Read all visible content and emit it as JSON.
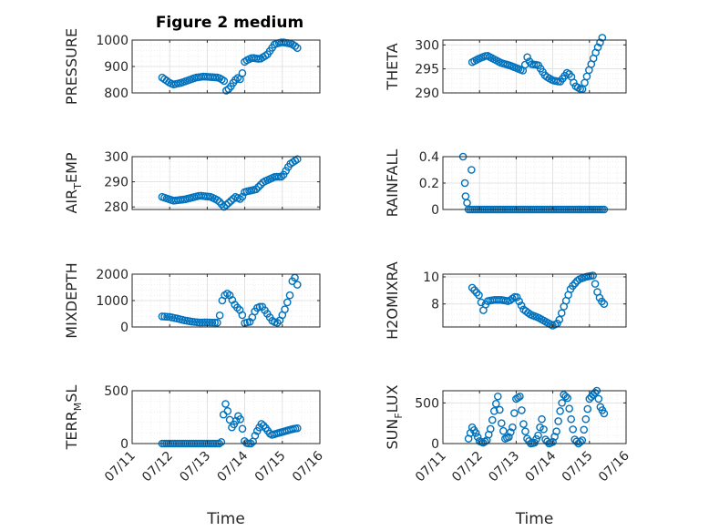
{
  "figure": {
    "title": "Figure 2 medium"
  },
  "colors": {
    "marker": "#0072BD",
    "axes": "#262626",
    "grid": "#dcdcdc",
    "minorGrid": "#e6e6e6"
  },
  "chart_data": [
    {
      "type": "scatter",
      "ylabel": "PRESSURE",
      "title": "Figure 2 medium",
      "xlim": [
        "07/11",
        "07/16"
      ],
      "ylim": [
        800,
        1000
      ],
      "yticks": [
        "800",
        "900",
        "1000"
      ],
      "xtick_labels": [
        "07/11",
        "07/12",
        "07/13",
        "07/14",
        "07/15",
        "07/16"
      ],
      "show_xticklabels": false,
      "anchors": [
        [
          0.8,
          858
        ],
        [
          0.9,
          848
        ],
        [
          1.0,
          838
        ],
        [
          1.1,
          832
        ],
        [
          1.3,
          838
        ],
        [
          1.5,
          848
        ],
        [
          1.7,
          858
        ],
        [
          1.9,
          862
        ],
        [
          2.1,
          860
        ],
        [
          2.3,
          858
        ],
        [
          2.4,
          850
        ],
        [
          2.45,
          845
        ],
        [
          2.5,
          808
        ],
        [
          2.6,
          818
        ],
        [
          2.7,
          840
        ],
        [
          2.8,
          858
        ],
        [
          2.9,
          850
        ],
        [
          3.0,
          920
        ],
        [
          3.2,
          933
        ],
        [
          3.4,
          928
        ],
        [
          3.6,
          945
        ],
        [
          3.8,
          985
        ],
        [
          4.0,
          992
        ],
        [
          4.2,
          987
        ],
        [
          4.3,
          982
        ],
        [
          4.4,
          970
        ]
      ],
      "points": 60,
      "grid": true
    },
    {
      "type": "scatter",
      "ylabel": "THETA",
      "xlim": [
        "07/11",
        "07/16"
      ],
      "ylim": [
        290,
        301
      ],
      "yticks": [
        "290",
        "295",
        "300"
      ],
      "xtick_labels": [
        "07/11",
        "07/12",
        "07/13",
        "07/14",
        "07/15",
        "07/16"
      ],
      "show_xticklabels": false,
      "anchors": [
        [
          0.8,
          296.4
        ],
        [
          1.0,
          297.2
        ],
        [
          1.2,
          297.8
        ],
        [
          1.4,
          297.0
        ],
        [
          1.6,
          296.2
        ],
        [
          1.8,
          295.8
        ],
        [
          2.0,
          295.2
        ],
        [
          2.2,
          294.6
        ],
        [
          2.3,
          297.5
        ],
        [
          2.4,
          296.0
        ],
        [
          2.6,
          295.8
        ],
        [
          2.8,
          293.5
        ],
        [
          3.0,
          292.6
        ],
        [
          3.2,
          292.3
        ],
        [
          3.4,
          294.3
        ],
        [
          3.5,
          293.5
        ],
        [
          3.6,
          291.5
        ],
        [
          3.8,
          290.6
        ],
        [
          4.0,
          295.0
        ],
        [
          4.2,
          299.0
        ],
        [
          4.35,
          301.5
        ]
      ],
      "points": 60,
      "grid": true
    },
    {
      "type": "scatter",
      "ylabel": "AIR_TEMP",
      "xlim": [
        "07/11",
        "07/16"
      ],
      "ylim": [
        279,
        300
      ],
      "yticks": [
        "280",
        "290",
        "300"
      ],
      "xtick_labels": [
        "07/11",
        "07/12",
        "07/13",
        "07/14",
        "07/15",
        "07/16"
      ],
      "show_xticklabels": false,
      "anchors": [
        [
          0.8,
          284
        ],
        [
          1.1,
          282.5
        ],
        [
          1.4,
          283
        ],
        [
          1.8,
          284.5
        ],
        [
          2.1,
          284
        ],
        [
          2.3,
          282.5
        ],
        [
          2.45,
          280
        ],
        [
          2.6,
          282
        ],
        [
          2.75,
          284
        ],
        [
          2.9,
          283
        ],
        [
          3.0,
          286
        ],
        [
          3.3,
          287
        ],
        [
          3.5,
          290
        ],
        [
          3.8,
          292
        ],
        [
          4.0,
          292
        ],
        [
          4.2,
          297
        ],
        [
          4.4,
          299
        ]
      ],
      "points": 60,
      "grid": true
    },
    {
      "type": "scatter",
      "ylabel": "RAINFALL",
      "xlim": [
        "07/11",
        "07/16"
      ],
      "ylim": [
        0,
        0.4
      ],
      "yticks": [
        "0",
        "0.2",
        "0.4"
      ],
      "xtick_labels": [
        "07/11",
        "07/12",
        "07/13",
        "07/14",
        "07/15",
        "07/16"
      ],
      "show_xticklabels": false,
      "extra_points": [
        [
          0.55,
          0.4
        ],
        [
          0.6,
          0.2
        ],
        [
          0.62,
          0.1
        ],
        [
          0.66,
          0.05
        ],
        [
          0.78,
          0.3
        ]
      ],
      "baseline_range": [
        0.7,
        4.4
      ],
      "baseline_value": 0,
      "points": 70,
      "grid": true
    },
    {
      "type": "scatter",
      "ylabel": "MIXDEPTH",
      "xlim": [
        "07/11",
        "07/16"
      ],
      "ylim": [
        0,
        2000
      ],
      "yticks": [
        "0",
        "1000",
        "2000"
      ],
      "xtick_labels": [
        "07/11",
        "07/12",
        "07/13",
        "07/14",
        "07/15",
        "07/16"
      ],
      "show_xticklabels": false,
      "anchors": [
        [
          0.8,
          400
        ],
        [
          1.0,
          380
        ],
        [
          1.2,
          320
        ],
        [
          1.4,
          250
        ],
        [
          1.6,
          200
        ],
        [
          1.8,
          170
        ],
        [
          2.0,
          175
        ],
        [
          2.3,
          160
        ],
        [
          2.4,
          1000
        ],
        [
          2.5,
          1300
        ],
        [
          2.6,
          1200
        ],
        [
          2.75,
          800
        ],
        [
          2.9,
          600
        ],
        [
          3.0,
          150
        ],
        [
          3.15,
          200
        ],
        [
          3.3,
          700
        ],
        [
          3.45,
          800
        ],
        [
          3.6,
          500
        ],
        [
          3.75,
          200
        ],
        [
          3.9,
          150
        ],
        [
          4.05,
          600
        ],
        [
          4.2,
          1200
        ],
        [
          4.3,
          2000
        ],
        [
          4.4,
          1600
        ]
      ],
      "points": 55,
      "grid": true
    },
    {
      "type": "scatter",
      "ylabel": "H2OMIXRA",
      "xlim": [
        "07/11",
        "07/16"
      ],
      "ylim": [
        6.3,
        10.2
      ],
      "yticks": [
        "8",
        "10"
      ],
      "xtick_labels": [
        "07/11",
        "07/12",
        "07/13",
        "07/14",
        "07/15",
        "07/16"
      ],
      "show_xticklabels": false,
      "anchors": [
        [
          0.8,
          9.2
        ],
        [
          1.0,
          8.6
        ],
        [
          1.1,
          7.5
        ],
        [
          1.2,
          8.2
        ],
        [
          1.4,
          8.3
        ],
        [
          1.6,
          8.3
        ],
        [
          1.8,
          8.2
        ],
        [
          2.0,
          8.6
        ],
        [
          2.2,
          7.6
        ],
        [
          2.4,
          7.2
        ],
        [
          2.6,
          7.0
        ],
        [
          2.8,
          6.7
        ],
        [
          3.0,
          6.4
        ],
        [
          3.15,
          6.6
        ],
        [
          3.3,
          7.8
        ],
        [
          3.5,
          9.2
        ],
        [
          3.7,
          9.8
        ],
        [
          3.9,
          10.0
        ],
        [
          4.1,
          10.1
        ],
        [
          4.2,
          9.0
        ],
        [
          4.3,
          8.3
        ],
        [
          4.4,
          8.0
        ]
      ],
      "points": 60,
      "grid": true
    },
    {
      "type": "scatter",
      "ylabel": "TERR_MSL",
      "xlabel": "Time",
      "xlim": [
        "07/11",
        "07/16"
      ],
      "ylim": [
        0,
        500
      ],
      "yticks": [
        "0",
        "500"
      ],
      "xtick_labels": [
        "07/11",
        "07/12",
        "07/13",
        "07/14",
        "07/15",
        "07/16"
      ],
      "show_xticklabels": true,
      "anchors": [
        [
          0.8,
          0
        ],
        [
          1.6,
          0
        ],
        [
          2.35,
          0
        ],
        [
          2.4,
          30
        ],
        [
          2.45,
          420
        ],
        [
          2.55,
          300
        ],
        [
          2.65,
          150
        ],
        [
          2.75,
          200
        ],
        [
          2.85,
          280
        ],
        [
          2.95,
          120
        ],
        [
          3.0,
          10
        ],
        [
          3.1,
          0
        ],
        [
          3.2,
          0
        ],
        [
          3.3,
          100
        ],
        [
          3.45,
          190
        ],
        [
          3.55,
          150
        ],
        [
          3.7,
          80
        ],
        [
          3.9,
          100
        ],
        [
          4.1,
          120
        ],
        [
          4.3,
          140
        ],
        [
          4.4,
          145
        ]
      ],
      "points": 65,
      "grid": true
    },
    {
      "type": "scatter",
      "ylabel": "SUN_FLUX",
      "xlabel": "Time",
      "xlim": [
        "07/11",
        "07/16"
      ],
      "ylim": [
        0,
        650
      ],
      "yticks": [
        "0",
        "500"
      ],
      "xtick_labels": [
        "07/11",
        "07/12",
        "07/13",
        "07/14",
        "07/15",
        "07/16"
      ],
      "show_xticklabels": true,
      "anchors": [
        [
          0.7,
          60
        ],
        [
          0.8,
          200
        ],
        [
          0.9,
          130
        ],
        [
          1.0,
          30
        ],
        [
          1.1,
          10
        ],
        [
          1.2,
          40
        ],
        [
          1.3,
          180
        ],
        [
          1.4,
          400
        ],
        [
          1.5,
          580
        ],
        [
          1.6,
          250
        ],
        [
          1.7,
          60
        ],
        [
          1.8,
          80
        ],
        [
          1.9,
          200
        ],
        [
          2.0,
          550
        ],
        [
          2.1,
          580
        ],
        [
          2.2,
          240
        ],
        [
          2.3,
          60
        ],
        [
          2.4,
          0
        ],
        [
          2.5,
          10
        ],
        [
          2.6,
          100
        ],
        [
          2.7,
          300
        ],
        [
          2.8,
          50
        ],
        [
          2.9,
          0
        ],
        [
          3.0,
          20
        ],
        [
          3.1,
          150
        ],
        [
          3.2,
          400
        ],
        [
          3.3,
          600
        ],
        [
          3.4,
          560
        ],
        [
          3.5,
          300
        ],
        [
          3.6,
          50
        ],
        [
          3.7,
          0
        ],
        [
          3.8,
          40
        ],
        [
          3.9,
          300
        ],
        [
          4.0,
          550
        ],
        [
          4.1,
          600
        ],
        [
          4.2,
          650
        ],
        [
          4.3,
          450
        ],
        [
          4.4,
          370
        ]
      ],
      "points": 75,
      "grid": true
    }
  ]
}
